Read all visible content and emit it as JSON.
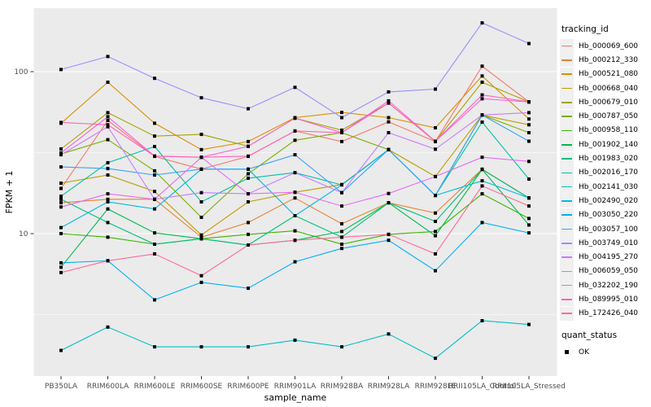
{
  "chart_data": {
    "type": "line",
    "xlabel": "sample_name",
    "ylabel": "FPKM + 1",
    "y_scale": "log10",
    "ylim": [
      1.3,
      250
    ],
    "grid": true,
    "legend_position": "right",
    "yticks": [
      {
        "label": "100",
        "value": 100
      },
      {
        "label": "10",
        "value": 10
      }
    ],
    "minor_gridlines": [
      3.1623,
      31.6228
    ],
    "point_shape": "square",
    "point_color": "#000000",
    "categories": [
      "PB350LA",
      "RRIM600LA",
      "RRIM600LE",
      "RRIM600SE",
      "RRIM600PE",
      "RRIM901LA",
      "RRIM928BA",
      "RRIM928LA",
      "RRIM928LE",
      "RRII105LA_Control",
      "RRII105LA_Stressed"
    ],
    "series": [
      {
        "name": "Hb_000069_600",
        "color": "#F8766D",
        "values": [
          19,
          50,
          30,
          25,
          30,
          43,
          37,
          49,
          37,
          108,
          65
        ]
      },
      {
        "name": "Hb_000212_330",
        "color": "#EA8331",
        "values": [
          15.5,
          16.3,
          16.3,
          9.5,
          11.7,
          16.6,
          11.5,
          15.5,
          13.4,
          25,
          16.6
        ]
      },
      {
        "name": "Hb_000521_080",
        "color": "#D89000",
        "values": [
          48,
          86,
          48,
          33,
          37,
          52,
          56,
          52,
          45,
          94,
          51
        ]
      },
      {
        "name": "Hb_000668_040",
        "color": "#C09B00",
        "values": [
          20.5,
          23,
          18.2,
          9.8,
          15.7,
          18,
          20.1,
          33,
          22.5,
          54,
          47
        ]
      },
      {
        "name": "Hb_000679_010",
        "color": "#A3A500",
        "values": [
          33.3,
          55.8,
          40,
          41,
          34.6,
          51.6,
          43.5,
          64,
          37,
          86,
          65
        ]
      },
      {
        "name": "Hb_000787_050",
        "color": "#7CAE00",
        "values": [
          31,
          38,
          24.4,
          12.6,
          23.4,
          37.7,
          42,
          33,
          17.2,
          54,
          42
        ]
      },
      {
        "name": "Hb_000958_110",
        "color": "#39B600",
        "values": [
          10,
          9.5,
          8.6,
          9.3,
          9.9,
          10.4,
          8.6,
          9.9,
          10.3,
          17.6,
          12.4
        ]
      },
      {
        "name": "Hb_001902_140",
        "color": "#00BB4E",
        "values": [
          6.2,
          14.2,
          10.1,
          9.3,
          8.5,
          9.1,
          10.3,
          15.5,
          9.7,
          24.9,
          11.3
        ]
      },
      {
        "name": "Hb_001983_020",
        "color": "#00BF7D",
        "values": [
          16.3,
          11.7,
          8.6,
          9.3,
          8.5,
          12.9,
          9.5,
          15.5,
          11.9,
          24.9,
          16.6
        ]
      },
      {
        "name": "Hb_002016_170",
        "color": "#00C1A3",
        "values": [
          17,
          27.4,
          34.5,
          15.7,
          22,
          23.8,
          20,
          33,
          17.2,
          48.8,
          21.7
        ]
      },
      {
        "name": "Hb_002141_030",
        "color": "#00BFC4",
        "values": [
          1.9,
          2.65,
          2.0,
          2.0,
          2.0,
          2.2,
          2.0,
          2.4,
          1.7,
          2.9,
          2.75
        ]
      },
      {
        "name": "Hb_002490_020",
        "color": "#00BAE0",
        "values": [
          10.9,
          15.7,
          14.2,
          25,
          25,
          12.9,
          20,
          33,
          17.2,
          21.2,
          16.6
        ]
      },
      {
        "name": "Hb_003050_220",
        "color": "#00B0F6",
        "values": [
          6.6,
          6.8,
          3.9,
          5.0,
          4.6,
          6.7,
          8.1,
          9.1,
          5.9,
          11.7,
          10.1
        ]
      },
      {
        "name": "Hb_003057_100",
        "color": "#35A2FF",
        "values": [
          25.8,
          25.2,
          23,
          25,
          25,
          30.7,
          17.9,
          33,
          17.2,
          54,
          37.2
        ]
      },
      {
        "name": "Hb_003749_010",
        "color": "#9590FF",
        "values": [
          103,
          124,
          91,
          69,
          59,
          80,
          52,
          75,
          78,
          200,
          149
        ]
      },
      {
        "name": "Hb_004195_270",
        "color": "#C77CFF",
        "values": [
          30.7,
          45.7,
          16.3,
          17.9,
          17.6,
          23.8,
          17.9,
          42,
          33.2,
          54,
          55.8
        ]
      },
      {
        "name": "Hb_006059_050",
        "color": "#E76BF3",
        "values": [
          14.6,
          17.6,
          16.3,
          29.6,
          17.6,
          18,
          14.8,
          17.7,
          22.5,
          29.6,
          27.9
        ]
      },
      {
        "name": "Hb_032202_190",
        "color": "#FA62DB",
        "values": [
          31.5,
          52.7,
          30.1,
          29.6,
          34.6,
          51.6,
          42,
          66,
          37.2,
          68,
          65
        ]
      },
      {
        "name": "Hb_089995_010",
        "color": "#FF62BC",
        "values": [
          48.6,
          47,
          30.1,
          29.6,
          30.1,
          43,
          42,
          64,
          37.2,
          71.8,
          65
        ]
      },
      {
        "name": "Hb_172426_040",
        "color": "#FF6A98",
        "values": [
          5.75,
          6.8,
          7.5,
          5.5,
          8.5,
          9.1,
          9.5,
          9.9,
          7.5,
          19.7,
          14.8
        ]
      }
    ]
  },
  "legend": {
    "tracking_title": "tracking_id",
    "quant_title": "quant_status",
    "quant_items": [
      "OK"
    ]
  },
  "colors": {
    "panel_bg": "#EBEBEB",
    "grid": "#FFFFFF",
    "tick_text": "#4D4D4D",
    "axis_title": "#000000"
  }
}
